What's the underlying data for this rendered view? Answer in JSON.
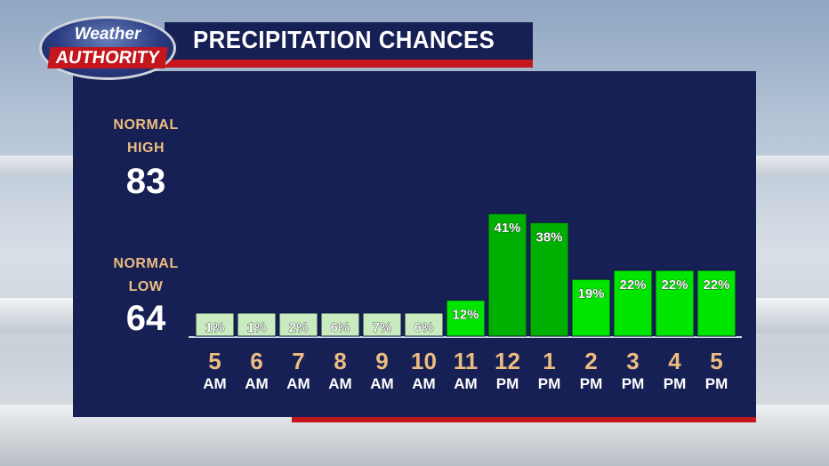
{
  "header": {
    "logo_top": "Weather",
    "logo_bottom": "AUTHORITY",
    "title": "PRECIPITATION CHANCES"
  },
  "normals": {
    "high_label_line1": "NORMAL",
    "high_label_line2": "HIGH",
    "high_value": "83",
    "low_label_line1": "NORMAL",
    "low_label_line2": "LOW",
    "low_value": "64"
  },
  "colors": {
    "panel": "#172055",
    "accent_red": "#c4161c",
    "label_tan": "#ecbc80",
    "bar_low": "#c8ecc0",
    "bar_mid": "#00e600",
    "bar_high": "#00b000"
  },
  "chart_data": {
    "type": "bar",
    "title": "PRECIPITATION CHANCES",
    "categories": [
      "5 AM",
      "6 AM",
      "7 AM",
      "8 AM",
      "9 AM",
      "10 AM",
      "11 AM",
      "12 PM",
      "1 PM",
      "2 PM",
      "3 PM",
      "4 PM",
      "5 PM"
    ],
    "hour_labels": [
      "5",
      "6",
      "7",
      "8",
      "9",
      "10",
      "11",
      "12",
      "1",
      "2",
      "3",
      "4",
      "5"
    ],
    "period_labels": [
      "AM",
      "AM",
      "AM",
      "AM",
      "AM",
      "AM",
      "AM",
      "PM",
      "PM",
      "PM",
      "PM",
      "PM",
      "PM"
    ],
    "values": [
      1,
      1,
      2,
      6,
      7,
      6,
      12,
      41,
      38,
      19,
      22,
      22,
      22
    ],
    "value_labels": [
      "1%",
      "1%",
      "2%",
      "6%",
      "7%",
      "6%",
      "12%",
      "41%",
      "38%",
      "19%",
      "22%",
      "22%",
      "22%"
    ],
    "unit": "%",
    "ylim": [
      0,
      100
    ],
    "grid": false,
    "legend": "none"
  }
}
